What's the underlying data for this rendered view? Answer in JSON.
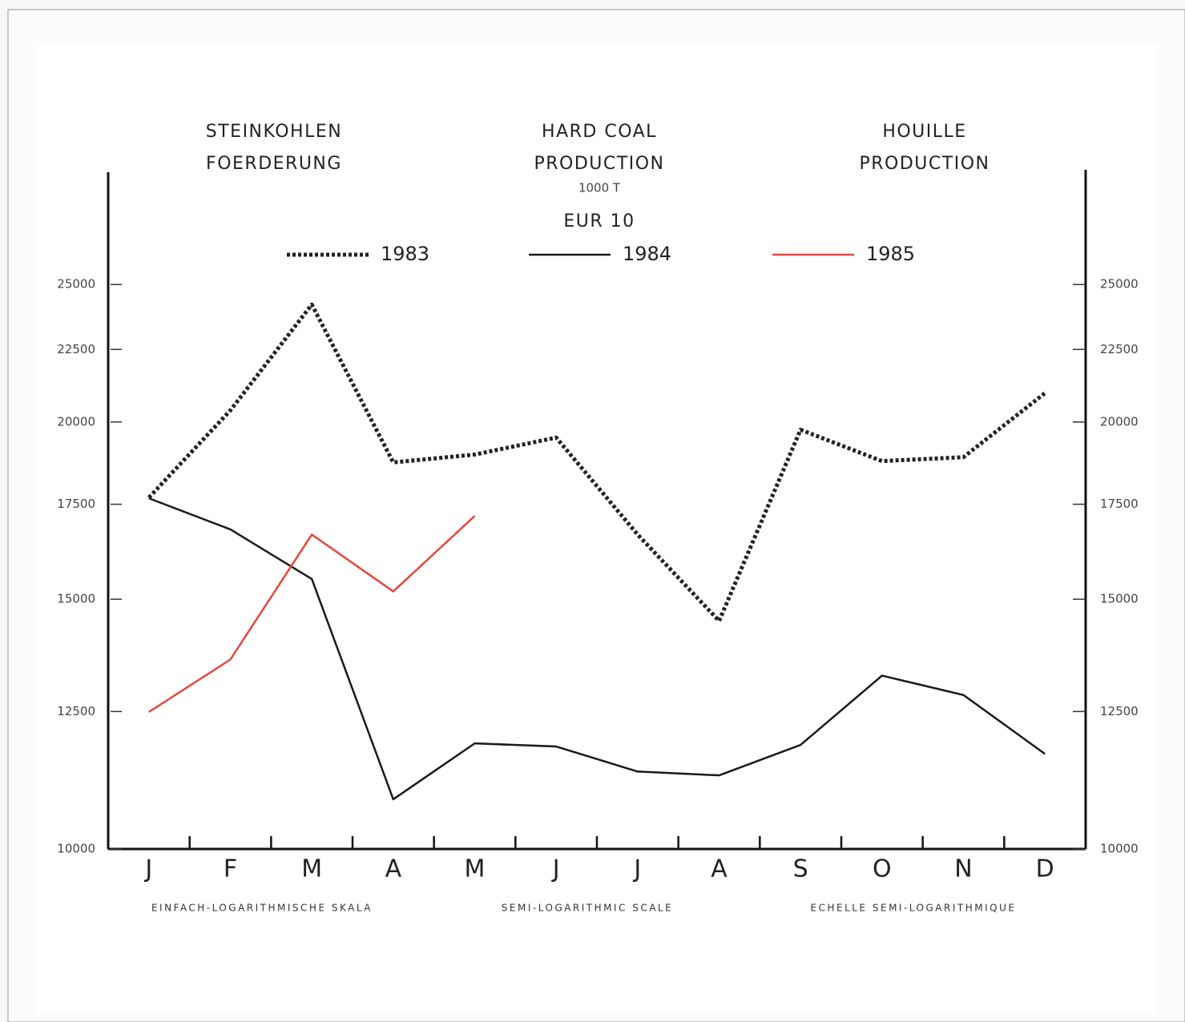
{
  "chart_data": {
    "type": "line",
    "title_blocks": [
      [
        "STEINKOHLEN",
        "FOERDERUNG"
      ],
      [
        "HARD COAL",
        "PRODUCTION"
      ],
      [
        "HOUILLE",
        "PRODUCTION"
      ]
    ],
    "unit": "1000 T",
    "subtitle": "EUR 10",
    "scale_notes": [
      "EINFACH-LOGARITHMISCHE SKALA",
      "SEMI-LOGARITHMIC SCALE",
      "ECHELLE SEMI-LOGARITHMIQUE"
    ],
    "categories": [
      "J",
      "F",
      "M",
      "A",
      "M",
      "J",
      "J",
      "A",
      "S",
      "O",
      "N",
      "D"
    ],
    "series": [
      {
        "name": "1983",
        "color": "#222222",
        "dashed": true,
        "values": [
          17690,
          20380,
          24200,
          18730,
          18970,
          19500,
          16660,
          14480,
          19750,
          18770,
          18890,
          20960
        ]
      },
      {
        "name": "1984",
        "color": "#1a1a1a",
        "dashed": false,
        "values": [
          17670,
          16800,
          15500,
          10840,
          11870,
          11810,
          11340,
          11270,
          11840,
          13250,
          12840,
          11670
        ]
      },
      {
        "name": "1985",
        "color": "#e8453c",
        "dashed": false,
        "values": [
          12490,
          13600,
          16660,
          15190,
          17170,
          null,
          null,
          null,
          null,
          null,
          null,
          null
        ]
      }
    ],
    "log_y": true,
    "ylim": [
      10000,
      30000
    ],
    "yticks": [
      10000,
      12500,
      15000,
      17500,
      20000,
      22500,
      25000
    ],
    "right_axis": true,
    "grid": false
  }
}
